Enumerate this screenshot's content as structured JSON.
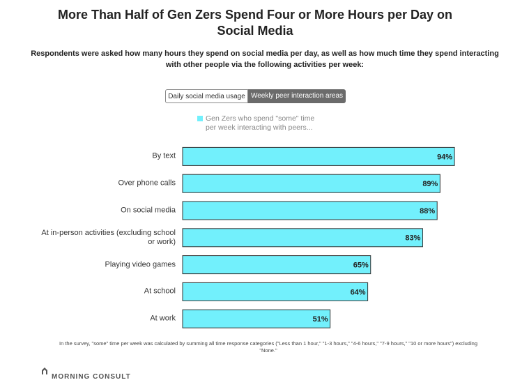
{
  "chart_data": {
    "type": "bar",
    "orientation": "horizontal",
    "title": "More Than Half of Gen Zers Spend Four or More Hours per Day on Social Media",
    "subtitle": "Respondents were asked how many hours they spend on social media per day, as well as how much time they spend interacting with other people via the following activities per week:",
    "toggle": [
      "Daily social media usage",
      "Weekly peer interaction areas"
    ],
    "categories": [
      "By text",
      "Over phone calls",
      "On social media",
      "At in-person activities (excluding school or work)",
      "Playing video games",
      "At school",
      "At work"
    ],
    "series": [
      {
        "name": "Gen Zers who spend \"some\" time per week interacting with peers...",
        "color": "#72f0fc",
        "values": [
          94,
          89,
          88,
          83,
          65,
          64,
          51
        ],
        "value_labels": [
          "94%",
          "89%",
          "88%",
          "83%",
          "65%",
          "64%",
          "51%"
        ]
      }
    ],
    "xlim": [
      0,
      100
    ],
    "footnote": "In the survey, \"some\" time per week was calculated by summing all time response categories (\"Less than 1 hour,\" \"1-3 hours,\" \"4-6 hours,\" \"7-9 hours,\" \"10 or more hours\") excluding \"None.\"",
    "brand": "MORNING CONSULT"
  }
}
